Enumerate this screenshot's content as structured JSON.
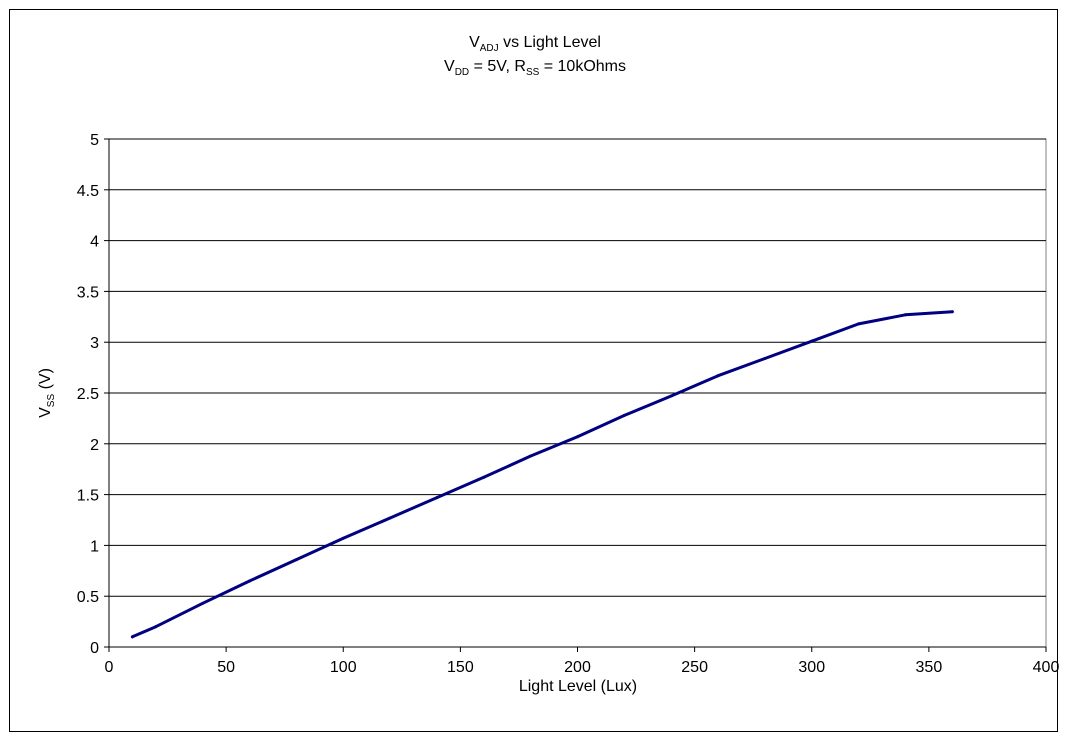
{
  "chart_data": {
    "type": "line",
    "title": {
      "line1": {
        "main": "V",
        "sub": "ADJ",
        "rest": " vs Light Level"
      },
      "line2": {
        "v": "V",
        "v_sub": "DD",
        "v_rest": " = 5V, ",
        "r": "R",
        "r_sub": "SS",
        "r_rest": " = 10kOhms"
      }
    },
    "xlabel": "Light Level (Lux)",
    "ylabel": {
      "main": "V",
      "sub": "SS",
      "rest": " (V)"
    },
    "xlim": [
      0,
      400
    ],
    "ylim": [
      0,
      5
    ],
    "xticks": [
      0,
      50,
      100,
      150,
      200,
      250,
      300,
      350,
      400
    ],
    "yticks": [
      0,
      0.5,
      1,
      1.5,
      2,
      2.5,
      3,
      3.5,
      4,
      4.5,
      5
    ],
    "xtick_labels": [
      "0",
      "50",
      "100",
      "150",
      "200",
      "250",
      "300",
      "350",
      "400"
    ],
    "ytick_labels": [
      "0",
      "0.5",
      "1",
      "1.5",
      "2",
      "2.5",
      "3",
      "3.5",
      "4",
      "4.5",
      "5"
    ],
    "grid": "horizontal",
    "legend": "none",
    "series": [
      {
        "color": "#000080",
        "x": [
          10,
          20,
          40,
          60,
          80,
          100,
          120,
          140,
          160,
          180,
          200,
          220,
          240,
          260,
          280,
          300,
          320,
          340,
          360
        ],
        "y": [
          0.1,
          0.2,
          0.43,
          0.65,
          0.86,
          1.07,
          1.27,
          1.47,
          1.67,
          1.88,
          2.07,
          2.28,
          2.47,
          2.67,
          2.84,
          3.01,
          3.18,
          3.27,
          3.3
        ]
      }
    ]
  }
}
